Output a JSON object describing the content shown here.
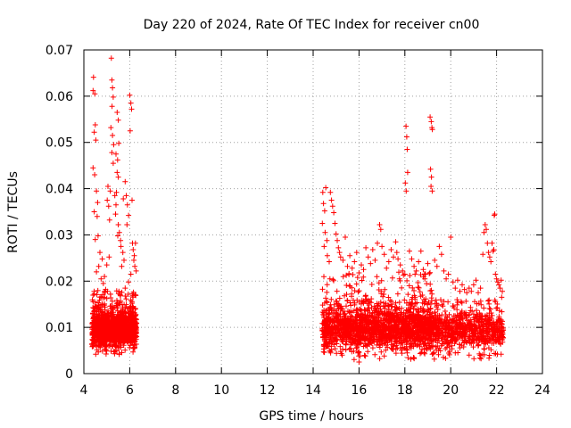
{
  "chart_data": {
    "type": "scatter",
    "title": "Day 220 of 2024, Rate Of TEC Index for receiver cn00",
    "xlabel": "GPS time / hours",
    "ylabel": "ROTI / TECUs",
    "xlim": [
      4,
      24
    ],
    "ylim": [
      0,
      0.07
    ],
    "xticks": [
      4,
      6,
      8,
      10,
      12,
      14,
      16,
      18,
      20,
      22,
      24
    ],
    "yticks": [
      0,
      0.01,
      0.02,
      0.03,
      0.04,
      0.05,
      0.06,
      0.07
    ],
    "xtick_labels": [
      "4",
      "6",
      "8",
      "10",
      "12",
      "14",
      "16",
      "18",
      "20",
      "22",
      "24"
    ],
    "ytick_labels": [
      "0",
      "0.01",
      "0.02",
      "0.03",
      "0.04",
      "0.05",
      "0.06",
      "0.07"
    ],
    "grid": true,
    "marker": "plus",
    "color": "#ff0000",
    "series": [
      {
        "name": "ROTI",
        "points": [
          [
            4.4,
            0.0612
          ],
          [
            4.42,
            0.0641
          ],
          [
            4.48,
            0.0605
          ],
          [
            4.45,
            0.0522
          ],
          [
            4.5,
            0.0538
          ],
          [
            4.52,
            0.0505
          ],
          [
            4.4,
            0.0445
          ],
          [
            4.47,
            0.043
          ],
          [
            4.55,
            0.0395
          ],
          [
            4.6,
            0.037
          ],
          [
            4.45,
            0.035
          ],
          [
            4.58,
            0.034
          ],
          [
            4.62,
            0.0298
          ],
          [
            4.5,
            0.029
          ],
          [
            4.7,
            0.0262
          ],
          [
            4.8,
            0.0248
          ],
          [
            4.65,
            0.0232
          ],
          [
            4.55,
            0.022
          ],
          [
            4.75,
            0.0205
          ],
          [
            4.9,
            0.021
          ],
          [
            5.0,
            0.0235
          ],
          [
            5.1,
            0.0252
          ],
          [
            4.85,
            0.0195
          ],
          [
            4.95,
            0.0182
          ],
          [
            5.02,
            0.0375
          ],
          [
            5.08,
            0.0362
          ],
          [
            5.12,
            0.0332
          ],
          [
            5.15,
            0.0395
          ],
          [
            5.05,
            0.0405
          ],
          [
            5.2,
            0.0682
          ],
          [
            5.22,
            0.0635
          ],
          [
            5.25,
            0.0618
          ],
          [
            5.28,
            0.0598
          ],
          [
            5.23,
            0.0578
          ],
          [
            5.18,
            0.0532
          ],
          [
            5.25,
            0.0515
          ],
          [
            5.3,
            0.0495
          ],
          [
            5.22,
            0.0478
          ],
          [
            5.28,
            0.0455
          ],
          [
            5.35,
            0.0385
          ],
          [
            5.4,
            0.0365
          ],
          [
            5.45,
            0.0435
          ],
          [
            5.5,
            0.0425
          ],
          [
            5.42,
            0.0392
          ],
          [
            5.38,
            0.0345
          ],
          [
            5.5,
            0.0322
          ],
          [
            5.55,
            0.0305
          ],
          [
            5.48,
            0.0298
          ],
          [
            5.6,
            0.0288
          ],
          [
            5.45,
            0.0565
          ],
          [
            5.5,
            0.0548
          ],
          [
            5.52,
            0.0498
          ],
          [
            5.4,
            0.0475
          ],
          [
            5.47,
            0.0462
          ],
          [
            5.62,
            0.0275
          ],
          [
            5.7,
            0.0262
          ],
          [
            5.75,
            0.0245
          ],
          [
            5.65,
            0.0232
          ],
          [
            5.8,
            0.0415
          ],
          [
            5.85,
            0.0385
          ],
          [
            5.72,
            0.0378
          ],
          [
            5.9,
            0.0365
          ],
          [
            5.95,
            0.0342
          ],
          [
            5.88,
            0.0322
          ],
          [
            6.0,
            0.0602
          ],
          [
            6.05,
            0.0585
          ],
          [
            6.08,
            0.0572
          ],
          [
            6.02,
            0.0525
          ],
          [
            6.1,
            0.0375
          ],
          [
            6.12,
            0.0282
          ],
          [
            6.15,
            0.0268
          ],
          [
            6.2,
            0.0255
          ],
          [
            6.18,
            0.0245
          ],
          [
            6.25,
            0.0282
          ],
          [
            6.22,
            0.0232
          ],
          [
            6.28,
            0.0222
          ],
          [
            6.05,
            0.0215
          ],
          [
            5.95,
            0.0198
          ],
          [
            5.8,
            0.0185
          ],
          [
            14.42,
            0.0392
          ],
          [
            14.45,
            0.0368
          ],
          [
            14.5,
            0.0352
          ],
          [
            14.55,
            0.0402
          ],
          [
            14.4,
            0.0325
          ],
          [
            14.52,
            0.0305
          ],
          [
            14.6,
            0.0288
          ],
          [
            14.48,
            0.0275
          ],
          [
            14.62,
            0.0255
          ],
          [
            14.7,
            0.0242
          ],
          [
            14.75,
            0.0392
          ],
          [
            14.8,
            0.0375
          ],
          [
            14.85,
            0.0362
          ],
          [
            14.9,
            0.0348
          ],
          [
            14.95,
            0.0325
          ],
          [
            15.0,
            0.0302
          ],
          [
            15.05,
            0.0288
          ],
          [
            15.1,
            0.0272
          ],
          [
            15.15,
            0.0262
          ],
          [
            15.2,
            0.0252
          ],
          [
            15.3,
            0.0245
          ],
          [
            15.4,
            0.0295
          ],
          [
            15.5,
            0.0232
          ],
          [
            15.6,
            0.0255
          ],
          [
            15.7,
            0.0228
          ],
          [
            15.8,
            0.0242
          ],
          [
            15.9,
            0.0262
          ],
          [
            16.0,
            0.0218
          ],
          [
            16.1,
            0.0235
          ],
          [
            16.2,
            0.0225
          ],
          [
            16.3,
            0.0272
          ],
          [
            16.4,
            0.0252
          ],
          [
            16.5,
            0.0238
          ],
          [
            16.6,
            0.0268
          ],
          [
            16.7,
            0.0245
          ],
          [
            16.8,
            0.0282
          ],
          [
            16.9,
            0.0322
          ],
          [
            16.95,
            0.0312
          ],
          [
            17.0,
            0.0275
          ],
          [
            17.1,
            0.0258
          ],
          [
            17.2,
            0.0228
          ],
          [
            17.3,
            0.0242
          ],
          [
            17.4,
            0.0268
          ],
          [
            17.5,
            0.0252
          ],
          [
            17.6,
            0.0285
          ],
          [
            17.65,
            0.0262
          ],
          [
            17.7,
            0.0248
          ],
          [
            17.8,
            0.0235
          ],
          [
            17.9,
            0.0222
          ],
          [
            18.0,
            0.0215
          ],
          [
            18.05,
            0.0535
          ],
          [
            18.08,
            0.0512
          ],
          [
            18.1,
            0.0485
          ],
          [
            18.02,
            0.0412
          ],
          [
            18.06,
            0.0395
          ],
          [
            18.12,
            0.0435
          ],
          [
            18.2,
            0.0265
          ],
          [
            18.3,
            0.0248
          ],
          [
            18.4,
            0.0232
          ],
          [
            18.5,
            0.0222
          ],
          [
            18.6,
            0.0242
          ],
          [
            18.7,
            0.0265
          ],
          [
            18.8,
            0.0225
          ],
          [
            18.9,
            0.0215
          ],
          [
            19.0,
            0.0238
          ],
          [
            19.1,
            0.0555
          ],
          [
            19.15,
            0.0545
          ],
          [
            19.18,
            0.0532
          ],
          [
            19.2,
            0.0528
          ],
          [
            19.12,
            0.0442
          ],
          [
            19.16,
            0.0425
          ],
          [
            19.14,
            0.0405
          ],
          [
            19.19,
            0.0395
          ],
          [
            19.3,
            0.0245
          ],
          [
            19.4,
            0.0232
          ],
          [
            19.5,
            0.0275
          ],
          [
            19.6,
            0.0258
          ],
          [
            19.7,
            0.0222
          ],
          [
            19.8,
            0.0205
          ],
          [
            19.9,
            0.0215
          ],
          [
            20.0,
            0.0295
          ],
          [
            20.1,
            0.0198
          ],
          [
            20.2,
            0.0185
          ],
          [
            20.3,
            0.0202
          ],
          [
            20.4,
            0.0178
          ],
          [
            20.5,
            0.0192
          ],
          [
            20.6,
            0.0182
          ],
          [
            20.7,
            0.0175
          ],
          [
            20.8,
            0.0185
          ],
          [
            20.9,
            0.0178
          ],
          [
            21.0,
            0.0192
          ],
          [
            21.1,
            0.0202
          ],
          [
            21.2,
            0.0175
          ],
          [
            21.3,
            0.0185
          ],
          [
            21.4,
            0.0258
          ],
          [
            21.45,
            0.0305
          ],
          [
            21.5,
            0.0322
          ],
          [
            21.55,
            0.0312
          ],
          [
            21.6,
            0.0282
          ],
          [
            21.65,
            0.0262
          ],
          [
            21.7,
            0.0252
          ],
          [
            21.75,
            0.0242
          ],
          [
            21.8,
            0.0282
          ],
          [
            21.85,
            0.0265
          ],
          [
            21.9,
            0.0342
          ],
          [
            21.92,
            0.0345
          ],
          [
            21.88,
            0.0268
          ],
          [
            21.95,
            0.0215
          ],
          [
            22.0,
            0.0205
          ],
          [
            22.05,
            0.0198
          ],
          [
            22.1,
            0.0192
          ],
          [
            22.15,
            0.0185
          ],
          [
            22.2,
            0.0202
          ],
          [
            22.25,
            0.0178
          ],
          [
            22.22,
            0.0165
          ],
          [
            15.95,
            0.0045
          ],
          [
            16.0,
            0.0025
          ],
          [
            16.05,
            0.0038
          ],
          [
            17.1,
            0.0038
          ],
          [
            18.1,
            0.0045
          ],
          [
            19.2,
            0.0042
          ],
          [
            20.2,
            0.0045
          ],
          [
            22.2,
            0.0042
          ],
          [
            15.2,
            0.0048
          ],
          [
            14.8,
            0.0052
          ]
        ],
        "dense_bands": [
          {
            "x_range": [
              4.35,
              6.3
            ],
            "y_range": [
              0.004,
              0.018
            ],
            "count": 1300,
            "core": 0.0098
          },
          {
            "x_range": [
              14.4,
              22.3
            ],
            "y_range": [
              0.003,
              0.016
            ],
            "count": 3800,
            "core": 0.0095
          },
          {
            "x_range": [
              14.4,
              19.5
            ],
            "y_range": [
              0.004,
              0.022
            ],
            "count": 800,
            "core": 0.011
          }
        ]
      }
    ]
  }
}
